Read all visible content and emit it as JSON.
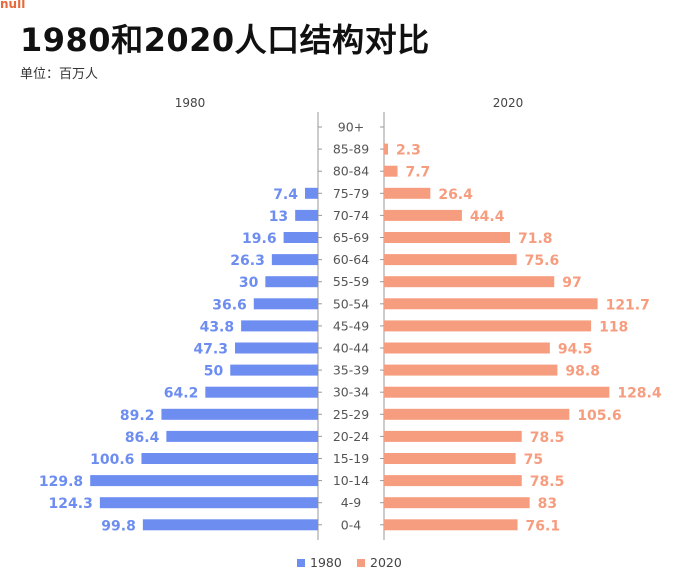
{
  "corner_mark": "null",
  "title": "1980和2020人口结构对比",
  "unit": "单位：百万人",
  "colors": {
    "left": "#6d8df0",
    "right": "#f79d7f",
    "axis": "#9a9a9a",
    "text": "#555555"
  },
  "chart_data": {
    "type": "bar",
    "orientation": "horizontal-population-pyramid",
    "categories": [
      "90+",
      "85-89",
      "80-84",
      "75-79",
      "70-74",
      "65-69",
      "60-64",
      "55-59",
      "50-54",
      "45-49",
      "40-44",
      "35-39",
      "30-34",
      "25-29",
      "20-24",
      "15-19",
      "10-14",
      "4-9",
      "0-4"
    ],
    "series": [
      {
        "name": "1980",
        "values": [
          null,
          null,
          null,
          7.4,
          13,
          19.6,
          26.3,
          30,
          36.6,
          43.8,
          47.3,
          50,
          64.2,
          89.2,
          86.4,
          100.6,
          129.8,
          124.3,
          99.8
        ]
      },
      {
        "name": "2020",
        "values": [
          null,
          2.3,
          7.7,
          26.4,
          44.4,
          71.8,
          75.6,
          97,
          121.7,
          118,
          94.5,
          98.8,
          128.4,
          105.6,
          78.5,
          75,
          78.5,
          83,
          76.1
        ]
      }
    ],
    "left_header": "1980",
    "right_header": "2020",
    "legend_position": "bottom"
  }
}
